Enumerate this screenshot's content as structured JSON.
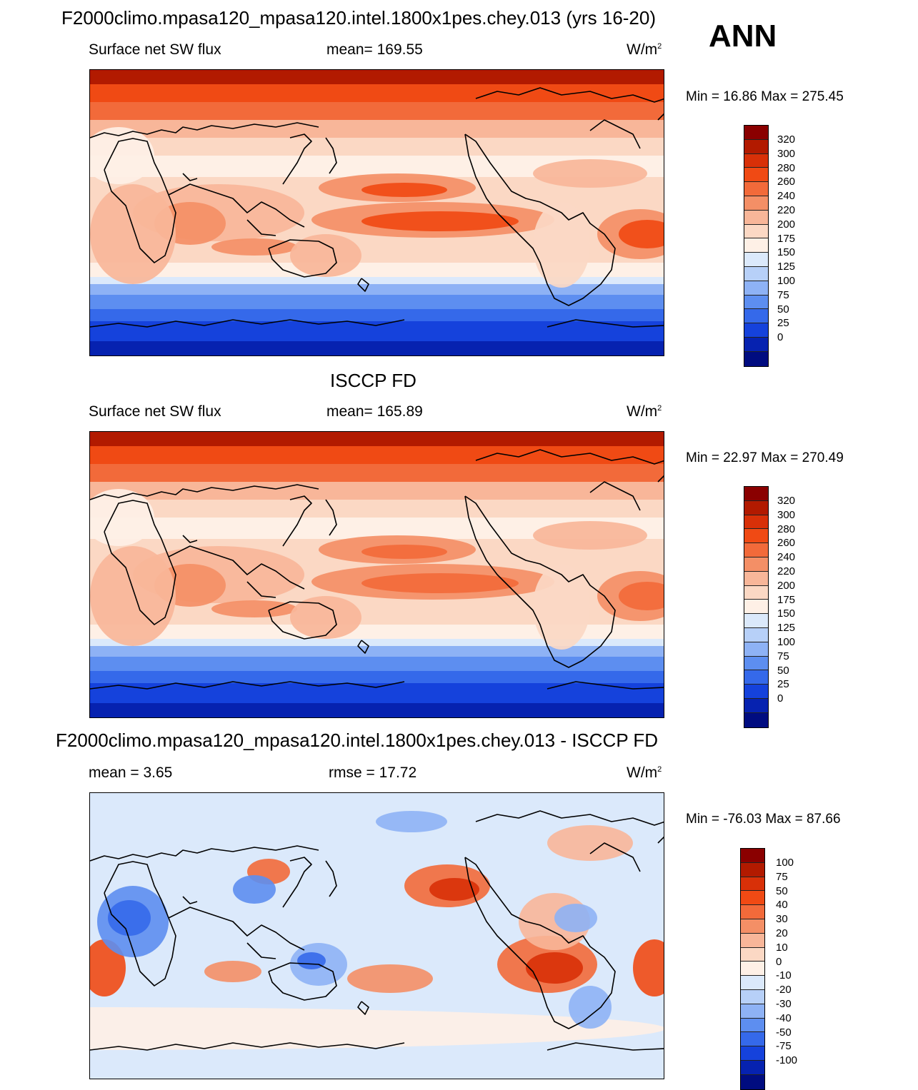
{
  "season": "ANN",
  "panels": [
    {
      "title": "F2000climo.mpasa120_mpasa120.intel.1800x1pes.chey.013 (yrs 16-20)",
      "left_label": "Surface net SW flux",
      "center_label": "mean= 169.55",
      "units": "W/m",
      "units_sup": "2",
      "minmax": "Min =  16.86 Max = 275.45"
    },
    {
      "title": "ISCCP FD",
      "left_label": "Surface net SW flux",
      "center_label": "mean= 165.89",
      "units": "W/m",
      "units_sup": "2",
      "minmax": "Min =  22.97 Max = 270.49"
    },
    {
      "title": "F2000climo.mpasa120_mpasa120.intel.1800x1pes.chey.013 - ISCCP FD",
      "left_label": "mean =   3.65",
      "center_label": "rmse =  17.72",
      "units": "W/m",
      "units_sup": "2",
      "minmax": "Min = -76.03 Max =  87.66"
    }
  ],
  "colorbar_abs": {
    "labels": [
      "320",
      "300",
      "280",
      "260",
      "240",
      "220",
      "200",
      "175",
      "150",
      "125",
      "100",
      "75",
      "50",
      "25",
      "0"
    ],
    "colors": [
      "#8a0000",
      "#b21a00",
      "#d83008",
      "#f04a14",
      "#f26a3a",
      "#f48f66",
      "#f8b699",
      "#fbd8c4",
      "#fef0e6",
      "#dbe9fb",
      "#b7d0f8",
      "#8eb2f5",
      "#5d8ef0",
      "#3569ea",
      "#1542dc",
      "#0622b0",
      "#000c80"
    ]
  },
  "colorbar_diff": {
    "labels": [
      "100",
      "75",
      "50",
      "40",
      "30",
      "20",
      "10",
      "0",
      "-10",
      "-20",
      "-30",
      "-40",
      "-50",
      "-75",
      "-100"
    ],
    "colors": [
      "#8a0000",
      "#b21a00",
      "#d83008",
      "#f04a14",
      "#f26a3a",
      "#f48f66",
      "#f8b699",
      "#fbd8c4",
      "#fef0e6",
      "#dbe9fb",
      "#b7d0f8",
      "#8eb2f5",
      "#5d8ef0",
      "#3569ea",
      "#1542dc",
      "#0622b0",
      "#000c80"
    ]
  }
}
